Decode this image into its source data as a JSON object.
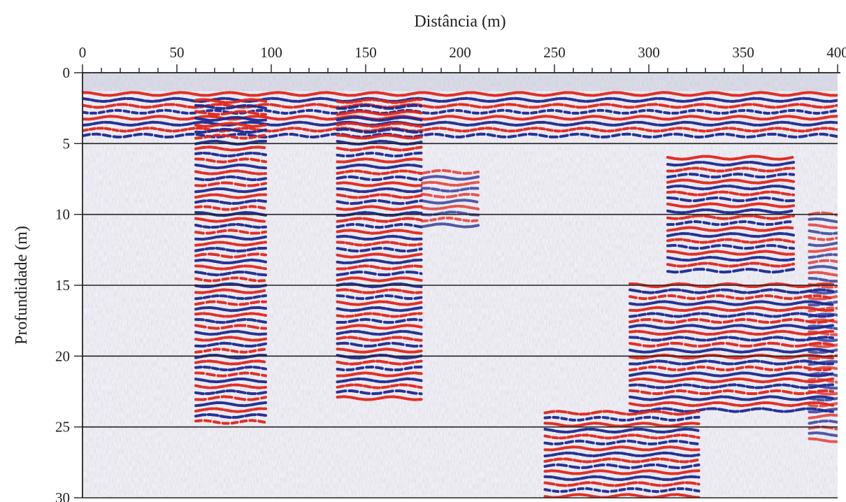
{
  "chart_data": {
    "type": "heatmap",
    "title": "",
    "xlabel": "Distância (m)",
    "ylabel": "Profundidade (m)",
    "x_axis_position": "top",
    "y_axis_direction": "down",
    "xlim": [
      0,
      400
    ],
    "ylim": [
      0,
      30
    ],
    "x_ticks": [
      0,
      50,
      100,
      150,
      200,
      250,
      300,
      350,
      400
    ],
    "x_tick_labels": [
      "0",
      "50",
      "100",
      "150",
      "200",
      "250",
      "300",
      "350",
      "400"
    ],
    "y_ticks": [
      0,
      5,
      10,
      15,
      20,
      25,
      30
    ],
    "y_tick_labels": [
      "0",
      "5",
      "10",
      "15",
      "20",
      "25",
      "30"
    ],
    "x_minor_tick_step": 10,
    "horizontal_gridlines": [
      5,
      10,
      15,
      20,
      25,
      30
    ],
    "grid": "horizontal",
    "colors": {
      "positive": "#e0261c",
      "negative": "#1c2a90",
      "neutral": "#f2f1f6",
      "gridline": "#222222"
    },
    "reflector_zones": [
      {
        "x": [
          0,
          400
        ],
        "depth": [
          1.5,
          4.5
        ],
        "intensity": "high"
      },
      {
        "x": [
          60,
          100
        ],
        "depth": [
          2,
          25
        ],
        "intensity": "high"
      },
      {
        "x": [
          135,
          180
        ],
        "depth": [
          2,
          23
        ],
        "intensity": "high"
      },
      {
        "x": [
          180,
          210
        ],
        "depth": [
          7,
          11
        ],
        "intensity": "medium"
      },
      {
        "x": [
          310,
          380
        ],
        "depth": [
          6,
          14
        ],
        "intensity": "high"
      },
      {
        "x": [
          290,
          400
        ],
        "depth": [
          15,
          24
        ],
        "intensity": "high"
      },
      {
        "x": [
          245,
          330
        ],
        "depth": [
          24,
          30
        ],
        "intensity": "high"
      },
      {
        "x": [
          385,
          400
        ],
        "depth": [
          10,
          26
        ],
        "intensity": "medium"
      }
    ]
  }
}
